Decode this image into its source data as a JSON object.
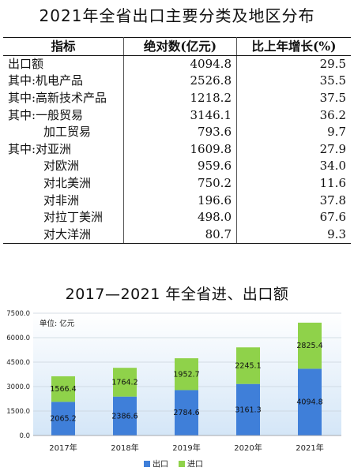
{
  "table": {
    "title": "2021年全省出口主要分类及地区分布",
    "headers": [
      "指标",
      "绝对数(亿元)",
      "比上年增长(%)"
    ],
    "rows": [
      [
        "出口额",
        "4094.8",
        "29.5"
      ],
      [
        "其中:机电产品",
        "2526.8",
        "35.5"
      ],
      [
        "其中:高新技术产品",
        "1218.2",
        "37.5"
      ],
      [
        "其中:一般贸易",
        "3146.1",
        "36.2"
      ],
      [
        "　　　加工贸易",
        "793.6",
        "9.7"
      ],
      [
        "其中:对亚洲",
        "1609.8",
        "27.9"
      ],
      [
        "　　　对欧洲",
        "959.6",
        "34.0"
      ],
      [
        "　　　对北美洲",
        "750.2",
        "11.6"
      ],
      [
        "　　　对非洲",
        "196.6",
        "37.8"
      ],
      [
        "　　　对拉丁美洲",
        "498.0",
        "67.6"
      ],
      [
        "　　　对大洋洲",
        "80.7",
        "9.3"
      ]
    ]
  },
  "chart_data": {
    "type": "bar",
    "stacked": true,
    "title": "2017—2021 年全省进、出口额",
    "unit_label": "单位: 亿元",
    "categories": [
      "2017年",
      "2018年",
      "2019年",
      "2020年",
      "2021年"
    ],
    "series": [
      {
        "name": "出口",
        "values": [
          2065.2,
          2386.6,
          2784.6,
          3161.3,
          4094.8
        ],
        "color": "#3f7fd9"
      },
      {
        "name": "进口",
        "values": [
          1566.4,
          1764.2,
          1952.7,
          2245.1,
          2825.4
        ],
        "color": "#8fd24a"
      }
    ],
    "yticks": [
      "0.0",
      "1500.0",
      "3000.0",
      "4500.0",
      "6000.0",
      "7500.0"
    ],
    "ylim": [
      0,
      7500
    ],
    "grid": true,
    "legend_position": "bottom"
  }
}
